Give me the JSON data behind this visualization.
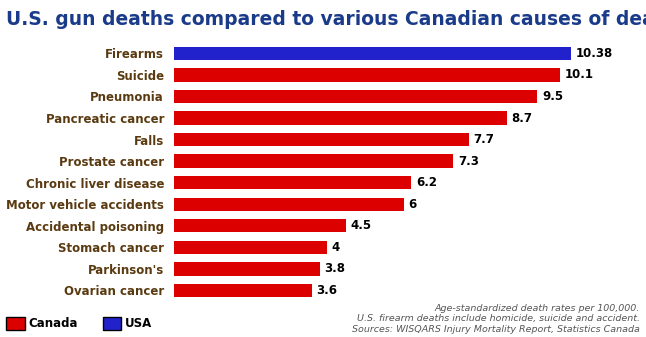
{
  "title": "U.S. gun deaths compared to various Canadian causes of death",
  "categories": [
    "Ovarian cancer",
    "Parkinson's",
    "Stomach cancer",
    "Accidental poisoning",
    "Motor vehicle accidents",
    "Chronic liver disease",
    "Prostate cancer",
    "Falls",
    "Pancreatic cancer",
    "Pneumonia",
    "Suicide",
    "Firearms"
  ],
  "values": [
    3.6,
    3.8,
    4.0,
    4.5,
    6.0,
    6.2,
    7.3,
    7.7,
    8.7,
    9.5,
    10.1,
    10.38
  ],
  "colors": [
    "#dd0000",
    "#dd0000",
    "#dd0000",
    "#dd0000",
    "#dd0000",
    "#dd0000",
    "#dd0000",
    "#dd0000",
    "#dd0000",
    "#dd0000",
    "#dd0000",
    "#2222cc"
  ],
  "value_labels": [
    "3.6",
    "3.8",
    "4",
    "4.5",
    "6",
    "6.2",
    "7.3",
    "7.7",
    "8.7",
    "9.5",
    "10.1",
    "10.38"
  ],
  "legend_canada_color": "#dd0000",
  "legend_usa_color": "#2222cc",
  "footnote_line1": "Age-standardized death rates per 100,000.",
  "footnote_line2": "U.S. firearm deaths include homicide, suicide and accident.",
  "footnote_line3": "Sources: WISQARS Injury Mortality Report, Statistics Canada",
  "xlim": [
    0,
    11.5
  ],
  "bg_color": "#ffffff",
  "title_color": "#1a3a8a",
  "label_color": "#5a3a10",
  "title_fontsize": 13.5,
  "label_fontsize": 8.5,
  "value_fontsize": 8.5,
  "bar_height": 0.62
}
